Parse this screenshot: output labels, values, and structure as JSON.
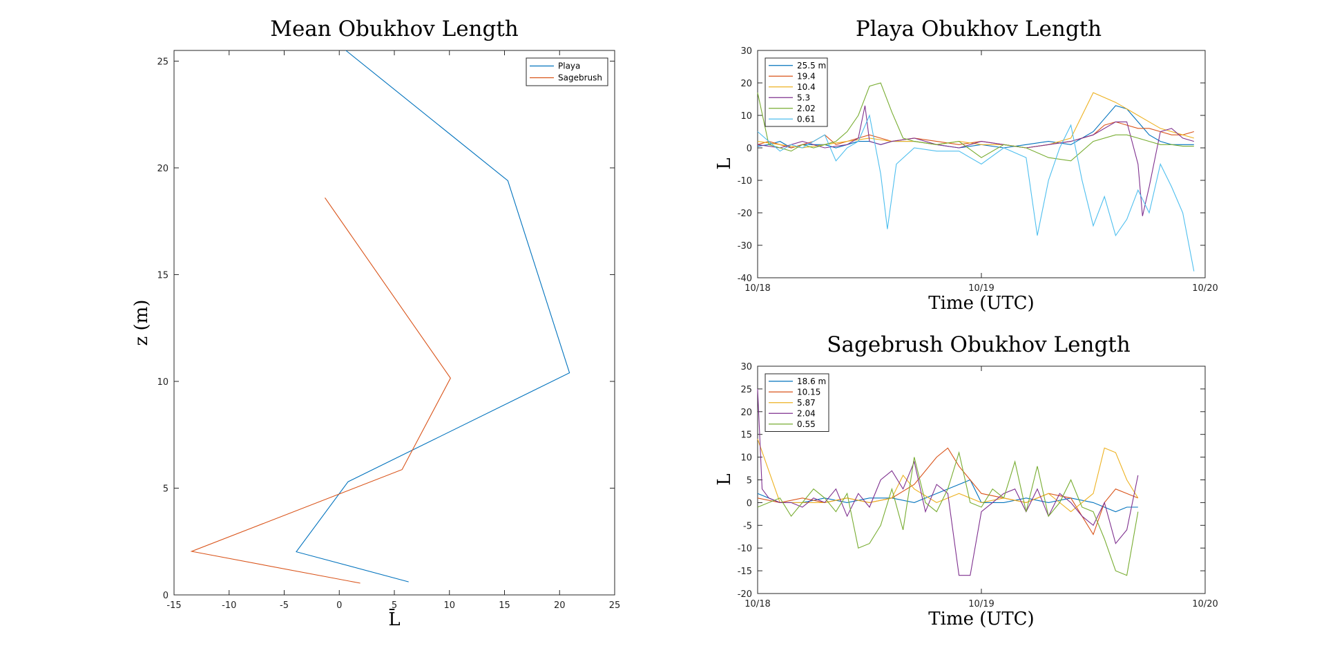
{
  "chart_data": [
    {
      "id": "mean",
      "type": "line",
      "title": "Mean Obukhov Length",
      "xlabel": "L̄",
      "ylabel": "z (m)",
      "xlim": [
        -15,
        25
      ],
      "ylim": [
        0,
        25.5
      ],
      "xticks": [
        -15,
        -10,
        -5,
        0,
        5,
        10,
        15,
        20,
        25
      ],
      "yticks": [
        0,
        5,
        10,
        15,
        20,
        25
      ],
      "grid": false,
      "legend_position": "top-right",
      "series": [
        {
          "name": "Playa",
          "color": "#0072BD",
          "x": [
            6.3,
            -3.9,
            0.8,
            20.9,
            15.3,
            0.6
          ],
          "y": [
            0.61,
            2.02,
            5.3,
            10.4,
            19.4,
            25.5
          ]
        },
        {
          "name": "Sagebrush",
          "color": "#D95319",
          "x": [
            1.9,
            -13.4,
            5.7,
            10.1,
            -1.3
          ],
          "y": [
            0.55,
            2.04,
            5.87,
            10.15,
            18.6
          ]
        }
      ]
    },
    {
      "id": "playa",
      "type": "line",
      "title": "Playa Obukhov Length",
      "xlabel": "Time (UTC)",
      "ylabel": "L",
      "xlim": [
        0,
        2
      ],
      "ylim": [
        -40,
        30
      ],
      "xticks": [
        "10/18",
        "10/19",
        "10/20"
      ],
      "yticks": [
        -40,
        -30,
        -20,
        -10,
        0,
        10,
        20,
        30
      ],
      "grid": false,
      "legend_position": "top-left",
      "series": [
        {
          "name": "25.5 m",
          "color": "#0072BD",
          "x": [
            0,
            0.05,
            0.1,
            0.15,
            0.2,
            0.25,
            0.3,
            0.35,
            0.4,
            0.45,
            0.5,
            0.55,
            0.6,
            0.7,
            0.8,
            0.9,
            1.0,
            1.1,
            1.2,
            1.3,
            1.4,
            1.5,
            1.55,
            1.6,
            1.65,
            1.7,
            1.75,
            1.8,
            1.85,
            1.9,
            1.95
          ],
          "y": [
            0.5,
            1,
            2,
            0,
            1,
            1,
            1,
            0,
            1,
            2,
            2,
            1,
            2,
            2,
            1,
            0,
            1,
            0,
            1,
            2,
            1,
            5,
            9,
            13,
            12,
            8,
            4,
            2,
            1,
            1,
            1
          ]
        },
        {
          "name": "19.4",
          "color": "#D95319",
          "x": [
            0,
            0.05,
            0.1,
            0.15,
            0.2,
            0.25,
            0.3,
            0.35,
            0.4,
            0.45,
            0.5,
            0.55,
            0.6,
            0.7,
            0.8,
            0.9,
            1.0,
            1.1,
            1.2,
            1.3,
            1.4,
            1.5,
            1.55,
            1.6,
            1.65,
            1.7,
            1.75,
            1.8,
            1.85,
            1.9,
            1.95
          ],
          "y": [
            1,
            2,
            1,
            0,
            1,
            2,
            4,
            1,
            2,
            3,
            4,
            3,
            2,
            3,
            2,
            1,
            2,
            1,
            0,
            1,
            2,
            4,
            7,
            8,
            7,
            6,
            6,
            5,
            4,
            4,
            5
          ]
        },
        {
          "name": "10.4",
          "color": "#EDB120",
          "x": [
            0,
            0.1,
            0.2,
            0.3,
            0.4,
            0.5,
            0.6,
            0.7,
            0.8,
            0.9,
            1.0,
            1.1,
            1.2,
            1.3,
            1.4,
            1.45,
            1.5,
            1.6,
            1.7,
            1.8,
            1.9,
            1.95
          ],
          "y": [
            2,
            1,
            0,
            1,
            2,
            3,
            2,
            2,
            1,
            2,
            1,
            1,
            0,
            1,
            3,
            10,
            17,
            14,
            10,
            6,
            4,
            3
          ]
        },
        {
          "name": "5.3",
          "color": "#7E2F8E",
          "x": [
            0,
            0.1,
            0.2,
            0.3,
            0.4,
            0.45,
            0.48,
            0.5,
            0.55,
            0.6,
            0.7,
            0.8,
            0.9,
            1.0,
            1.1,
            1.2,
            1.3,
            1.4,
            1.5,
            1.6,
            1.65,
            1.7,
            1.72,
            1.75,
            1.8,
            1.85,
            1.9,
            1.95
          ],
          "y": [
            1,
            0,
            2,
            0,
            1,
            3,
            13,
            2,
            1,
            2,
            3,
            1,
            0,
            2,
            1,
            0,
            1,
            2,
            4,
            8,
            8,
            -5,
            -21,
            -12,
            5,
            6,
            3,
            2
          ]
        },
        {
          "name": "2.02",
          "color": "#77AC30",
          "x": [
            0,
            0.05,
            0.1,
            0.15,
            0.2,
            0.25,
            0.3,
            0.35,
            0.4,
            0.45,
            0.5,
            0.55,
            0.6,
            0.65,
            0.7,
            0.8,
            0.9,
            1.0,
            1.1,
            1.2,
            1.3,
            1.4,
            1.5,
            1.6,
            1.65,
            1.7,
            1.75,
            1.8,
            1.85,
            1.9,
            1.95
          ],
          "y": [
            17,
            1,
            0,
            -1,
            1,
            0,
            1,
            2,
            5,
            10,
            19,
            20,
            11,
            3,
            2,
            1,
            2,
            -3,
            1,
            0,
            -3,
            -4,
            2,
            4,
            4,
            3,
            2,
            1,
            1,
            0.5,
            0.5
          ]
        },
        {
          "name": "0.61",
          "color": "#4DBEEE",
          "x": [
            0,
            0.05,
            0.1,
            0.15,
            0.2,
            0.25,
            0.3,
            0.35,
            0.4,
            0.45,
            0.5,
            0.55,
            0.58,
            0.62,
            0.7,
            0.8,
            0.9,
            1.0,
            1.1,
            1.2,
            1.25,
            1.3,
            1.35,
            1.4,
            1.45,
            1.5,
            1.55,
            1.6,
            1.65,
            1.7,
            1.75,
            1.8,
            1.85,
            1.9,
            1.95
          ],
          "y": [
            5,
            2,
            -1,
            1,
            0,
            2,
            4,
            -4,
            0,
            2,
            10,
            -8,
            -25,
            -5,
            0,
            -1,
            -1,
            -5,
            0,
            -3,
            -27,
            -10,
            0,
            7,
            -10,
            -24,
            -15,
            -27,
            -22,
            -13,
            -20,
            -5,
            -12,
            -20,
            -38
          ]
        }
      ]
    },
    {
      "id": "sagebrush",
      "type": "line",
      "title": "Sagebrush Obukhov Length",
      "xlabel": "Time (UTC)",
      "ylabel": "L",
      "xlim": [
        0,
        2
      ],
      "ylim": [
        -20,
        30
      ],
      "xticks": [
        "10/18",
        "10/19",
        "10/20"
      ],
      "yticks": [
        -20,
        -15,
        -10,
        -5,
        0,
        5,
        10,
        15,
        20,
        25,
        30
      ],
      "grid": false,
      "legend_position": "top-left",
      "series": [
        {
          "name": "18.6 m",
          "color": "#0072BD",
          "x": [
            0,
            0.1,
            0.2,
            0.3,
            0.4,
            0.5,
            0.6,
            0.7,
            0.8,
            0.9,
            0.95,
            1.0,
            1.1,
            1.2,
            1.3,
            1.4,
            1.5,
            1.6,
            1.65,
            1.7
          ],
          "y": [
            2,
            0,
            0,
            1,
            0,
            1,
            1,
            0,
            2,
            4,
            5,
            0,
            0,
            1,
            0,
            1,
            0,
            -2,
            -1,
            -1
          ]
        },
        {
          "name": "10.15",
          "color": "#D95319",
          "x": [
            0,
            0.1,
            0.2,
            0.3,
            0.4,
            0.5,
            0.6,
            0.7,
            0.8,
            0.85,
            0.9,
            1.0,
            1.1,
            1.2,
            1.3,
            1.4,
            1.45,
            1.5,
            1.55,
            1.6,
            1.65,
            1.7
          ],
          "y": [
            1,
            0,
            1,
            0,
            1,
            0,
            1,
            4,
            10,
            12,
            8,
            2,
            1,
            0,
            2,
            1,
            -3,
            -7,
            0,
            3,
            2,
            1
          ]
        },
        {
          "name": "5.87",
          "color": "#EDB120",
          "x": [
            0,
            0.1,
            0.2,
            0.3,
            0.4,
            0.5,
            0.6,
            0.65,
            0.7,
            0.8,
            0.9,
            1.0,
            1.1,
            1.2,
            1.3,
            1.4,
            1.5,
            1.55,
            1.6,
            1.65,
            1.7
          ],
          "y": [
            14,
            0,
            0,
            0,
            1,
            0,
            1,
            6,
            3,
            0,
            2,
            0,
            1,
            0,
            2,
            -2,
            2,
            12,
            11,
            5,
            1
          ]
        },
        {
          "name": "2.04",
          "color": "#7E2F8E",
          "x": [
            0,
            0.02,
            0.05,
            0.1,
            0.15,
            0.2,
            0.25,
            0.3,
            0.35,
            0.4,
            0.45,
            0.5,
            0.55,
            0.6,
            0.65,
            0.7,
            0.75,
            0.8,
            0.85,
            0.9,
            0.95,
            1.0,
            1.05,
            1.1,
            1.15,
            1.2,
            1.25,
            1.3,
            1.35,
            1.4,
            1.45,
            1.5,
            1.55,
            1.6,
            1.65,
            1.7
          ],
          "y": [
            25,
            3,
            1,
            0,
            0,
            -1,
            1,
            0,
            3,
            -3,
            2,
            -1,
            5,
            7,
            3,
            9,
            -2,
            4,
            2,
            -16,
            -16,
            -2,
            0,
            2,
            3,
            -2,
            3,
            -3,
            2,
            0,
            -3,
            -5,
            0,
            -9,
            -6,
            6
          ]
        },
        {
          "name": "0.55",
          "color": "#77AC30",
          "x": [
            0,
            0.1,
            0.15,
            0.2,
            0.25,
            0.3,
            0.35,
            0.4,
            0.45,
            0.5,
            0.55,
            0.6,
            0.65,
            0.7,
            0.75,
            0.8,
            0.85,
            0.9,
            0.95,
            1.0,
            1.05,
            1.1,
            1.15,
            1.2,
            1.25,
            1.3,
            1.35,
            1.4,
            1.45,
            1.5,
            1.55,
            1.6,
            1.65,
            1.7
          ],
          "y": [
            -1,
            1,
            -3,
            0,
            3,
            1,
            -2,
            2,
            -10,
            -9,
            -5,
            3,
            -6,
            10,
            0,
            -2,
            3,
            11,
            0,
            -1,
            3,
            1,
            9,
            -2,
            8,
            -3,
            0,
            5,
            -1,
            -2,
            -8,
            -15,
            -16,
            -2
          ]
        }
      ]
    }
  ]
}
